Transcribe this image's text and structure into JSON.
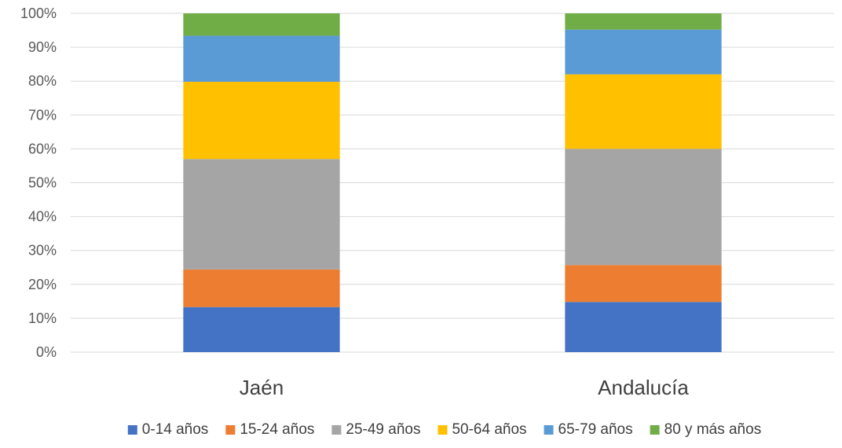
{
  "chart_data": {
    "type": "bar",
    "stacked": true,
    "percent": true,
    "categories": [
      "Jaén",
      "Andalucía"
    ],
    "series": [
      {
        "name": "0-14 años",
        "color": "#4472C4",
        "values": [
          13.3,
          14.8
        ]
      },
      {
        "name": "15-24 años",
        "color": "#ED7D31",
        "values": [
          11.1,
          10.9
        ]
      },
      {
        "name": "25-49 años",
        "color": "#A5A5A5",
        "values": [
          32.6,
          34.3
        ]
      },
      {
        "name": "50-64 años",
        "color": "#FFC000",
        "values": [
          22.8,
          22.0
        ]
      },
      {
        "name": "65-79 años",
        "color": "#5B9BD5",
        "values": [
          13.6,
          13.2
        ]
      },
      {
        "name": "80 y más años",
        "color": "#70AD47",
        "values": [
          6.6,
          4.8
        ]
      }
    ],
    "y_ticks": [
      "0%",
      "10%",
      "20%",
      "30%",
      "40%",
      "50%",
      "60%",
      "70%",
      "80%",
      "90%",
      "100%"
    ],
    "ylim": [
      0,
      100
    ],
    "grid": true,
    "legend_position": "bottom",
    "title": "",
    "xlabel": "",
    "ylabel": ""
  }
}
